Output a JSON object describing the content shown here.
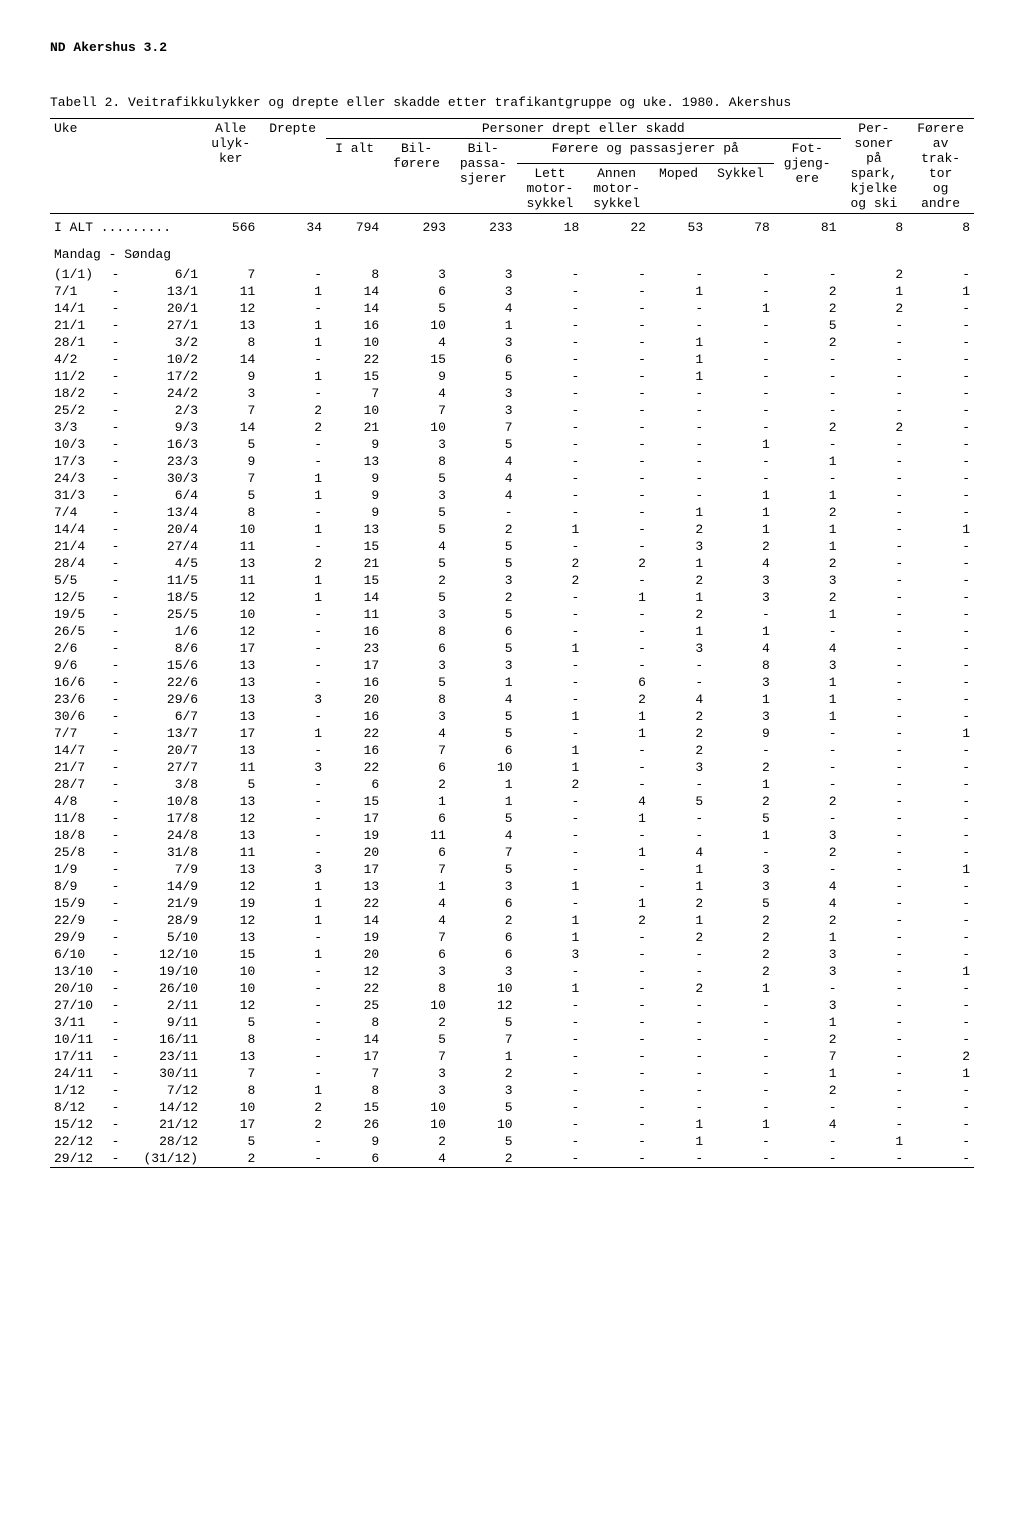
{
  "header_code": "ND  Akershus  3.2",
  "table_title": "Tabell 2.  Veitrafikkulykker og drepte eller skadde etter trafikantgruppe og uke.  1980.  Akershus",
  "headers": {
    "uke": "Uke",
    "alle_ulykker": "Alle\nulyk-\nker",
    "drepte": "Drepte",
    "personer_drept": "Personer drept eller skadd",
    "forere_pass": "Førere og passasjerer på",
    "i_alt": "I alt",
    "bilforere": "Bil-\nførere",
    "bilpassasjerer": "Bil-\npassa-\nsjerer",
    "lett_motorsykkel": "Lett\nmotor-\nsykkel",
    "annen_motorsykkel": "Annen\nmotor-\nsykkel",
    "moped": "Moped",
    "sykkel": "Sykkel",
    "fotgjengere": "Fot-\ngjeng-\nere",
    "personer_pa": "Per-\nsoner\npå\nspark,\nkjelke\nog ski",
    "forere_av": "Førere\nav\ntrak-\ntor\nog\nandre"
  },
  "total_label": "I ALT .........",
  "total_row": [
    "566",
    "34",
    "794",
    "293",
    "233",
    "18",
    "22",
    "53",
    "78",
    "81",
    "8",
    "8"
  ],
  "section_label": "Mandag - Søndag",
  "rows": [
    {
      "d": [
        "(1/1)",
        "-",
        "6/1"
      ],
      "v": [
        "7",
        "-",
        "8",
        "3",
        "3",
        "-",
        "-",
        "-",
        "-",
        "-",
        "2",
        "-"
      ]
    },
    {
      "d": [
        "7/1",
        "-",
        "13/1"
      ],
      "v": [
        "11",
        "1",
        "14",
        "6",
        "3",
        "-",
        "-",
        "1",
        "-",
        "2",
        "1",
        "1"
      ]
    },
    {
      "d": [
        "14/1",
        "-",
        "20/1"
      ],
      "v": [
        "12",
        "-",
        "14",
        "5",
        "4",
        "-",
        "-",
        "-",
        "1",
        "2",
        "2",
        "-"
      ]
    },
    {
      "d": [
        "21/1",
        "-",
        "27/1"
      ],
      "v": [
        "13",
        "1",
        "16",
        "10",
        "1",
        "-",
        "-",
        "-",
        "-",
        "5",
        "-",
        "-"
      ]
    },
    {
      "d": [
        "28/1",
        "-",
        "3/2"
      ],
      "v": [
        "8",
        "1",
        "10",
        "4",
        "3",
        "-",
        "-",
        "1",
        "-",
        "2",
        "-",
        "-"
      ]
    },
    {
      "d": [
        "4/2",
        "-",
        "10/2"
      ],
      "v": [
        "14",
        "-",
        "22",
        "15",
        "6",
        "-",
        "-",
        "1",
        "-",
        "-",
        "-",
        "-"
      ]
    },
    {
      "d": [
        "11/2",
        "-",
        "17/2"
      ],
      "v": [
        "9",
        "1",
        "15",
        "9",
        "5",
        "-",
        "-",
        "1",
        "-",
        "-",
        "-",
        "-"
      ]
    },
    {
      "d": [
        "18/2",
        "-",
        "24/2"
      ],
      "v": [
        "3",
        "-",
        "7",
        "4",
        "3",
        "-",
        "-",
        "-",
        "-",
        "-",
        "-",
        "-"
      ]
    },
    {
      "d": [
        "25/2",
        "-",
        "2/3"
      ],
      "v": [
        "7",
        "2",
        "10",
        "7",
        "3",
        "-",
        "-",
        "-",
        "-",
        "-",
        "-",
        "-"
      ]
    },
    {
      "d": [
        "3/3",
        "-",
        "9/3"
      ],
      "v": [
        "14",
        "2",
        "21",
        "10",
        "7",
        "-",
        "-",
        "-",
        "-",
        "2",
        "2",
        "-"
      ]
    },
    {
      "d": [
        "10/3",
        "-",
        "16/3"
      ],
      "v": [
        "5",
        "-",
        "9",
        "3",
        "5",
        "-",
        "-",
        "-",
        "1",
        "-",
        "-",
        "-"
      ]
    },
    {
      "d": [
        "17/3",
        "-",
        "23/3"
      ],
      "v": [
        "9",
        "-",
        "13",
        "8",
        "4",
        "-",
        "-",
        "-",
        "-",
        "1",
        "-",
        "-"
      ]
    },
    {
      "d": [
        "24/3",
        "-",
        "30/3"
      ],
      "v": [
        "7",
        "1",
        "9",
        "5",
        "4",
        "-",
        "-",
        "-",
        "-",
        "-",
        "-",
        "-"
      ]
    },
    {
      "d": [
        "31/3",
        "-",
        "6/4"
      ],
      "v": [
        "5",
        "1",
        "9",
        "3",
        "4",
        "-",
        "-",
        "-",
        "1",
        "1",
        "-",
        "-"
      ]
    },
    {
      "d": [
        "7/4",
        "-",
        "13/4"
      ],
      "v": [
        "8",
        "-",
        "9",
        "5",
        "-",
        "-",
        "-",
        "1",
        "1",
        "2",
        "-",
        "-"
      ]
    },
    {
      "d": [
        "14/4",
        "-",
        "20/4"
      ],
      "v": [
        "10",
        "1",
        "13",
        "5",
        "2",
        "1",
        "-",
        "2",
        "1",
        "1",
        "-",
        "1"
      ]
    },
    {
      "d": [
        "21/4",
        "-",
        "27/4"
      ],
      "v": [
        "11",
        "-",
        "15",
        "4",
        "5",
        "-",
        "-",
        "3",
        "2",
        "1",
        "-",
        "-"
      ]
    },
    {
      "d": [
        "28/4",
        "-",
        "4/5"
      ],
      "v": [
        "13",
        "2",
        "21",
        "5",
        "5",
        "2",
        "2",
        "1",
        "4",
        "2",
        "-",
        "-"
      ]
    },
    {
      "d": [
        "5/5",
        "-",
        "11/5"
      ],
      "v": [
        "11",
        "1",
        "15",
        "2",
        "3",
        "2",
        "-",
        "2",
        "3",
        "3",
        "-",
        "-"
      ]
    },
    {
      "d": [
        "12/5",
        "-",
        "18/5"
      ],
      "v": [
        "12",
        "1",
        "14",
        "5",
        "2",
        "-",
        "1",
        "1",
        "3",
        "2",
        "-",
        "-"
      ]
    },
    {
      "d": [
        "19/5",
        "-",
        "25/5"
      ],
      "v": [
        "10",
        "-",
        "11",
        "3",
        "5",
        "-",
        "-",
        "2",
        "-",
        "1",
        "-",
        "-"
      ]
    },
    {
      "d": [
        "26/5",
        "-",
        "1/6"
      ],
      "v": [
        "12",
        "-",
        "16",
        "8",
        "6",
        "-",
        "-",
        "1",
        "1",
        "-",
        "-",
        "-"
      ]
    },
    {
      "d": [
        "2/6",
        "-",
        "8/6"
      ],
      "v": [
        "17",
        "-",
        "23",
        "6",
        "5",
        "1",
        "-",
        "3",
        "4",
        "4",
        "-",
        "-"
      ]
    },
    {
      "d": [
        "9/6",
        "-",
        "15/6"
      ],
      "v": [
        "13",
        "-",
        "17",
        "3",
        "3",
        "-",
        "-",
        "-",
        "8",
        "3",
        "-",
        "-"
      ]
    },
    {
      "d": [
        "16/6",
        "-",
        "22/6"
      ],
      "v": [
        "13",
        "-",
        "16",
        "5",
        "1",
        "-",
        "6",
        "-",
        "3",
        "1",
        "-",
        "-"
      ]
    },
    {
      "d": [
        "23/6",
        "-",
        "29/6"
      ],
      "v": [
        "13",
        "3",
        "20",
        "8",
        "4",
        "-",
        "2",
        "4",
        "1",
        "1",
        "-",
        "-"
      ]
    },
    {
      "d": [
        "30/6",
        "-",
        "6/7"
      ],
      "v": [
        "13",
        "-",
        "16",
        "3",
        "5",
        "1",
        "1",
        "2",
        "3",
        "1",
        "-",
        "-"
      ]
    },
    {
      "d": [
        "7/7",
        "-",
        "13/7"
      ],
      "v": [
        "17",
        "1",
        "22",
        "4",
        "5",
        "-",
        "1",
        "2",
        "9",
        "-",
        "-",
        "1"
      ]
    },
    {
      "d": [
        "14/7",
        "-",
        "20/7"
      ],
      "v": [
        "13",
        "-",
        "16",
        "7",
        "6",
        "1",
        "-",
        "2",
        "-",
        "-",
        "-",
        "-"
      ]
    },
    {
      "d": [
        "21/7",
        "-",
        "27/7"
      ],
      "v": [
        "11",
        "3",
        "22",
        "6",
        "10",
        "1",
        "-",
        "3",
        "2",
        "-",
        "-",
        "-"
      ]
    },
    {
      "d": [
        "28/7",
        "-",
        "3/8"
      ],
      "v": [
        "5",
        "-",
        "6",
        "2",
        "1",
        "2",
        "-",
        "-",
        "1",
        "-",
        "-",
        "-"
      ]
    },
    {
      "d": [
        "4/8",
        "-",
        "10/8"
      ],
      "v": [
        "13",
        "-",
        "15",
        "1",
        "1",
        "-",
        "4",
        "5",
        "2",
        "2",
        "-",
        "-"
      ]
    },
    {
      "d": [
        "11/8",
        "-",
        "17/8"
      ],
      "v": [
        "12",
        "-",
        "17",
        "6",
        "5",
        "-",
        "1",
        "-",
        "5",
        "-",
        "-",
        "-"
      ]
    },
    {
      "d": [
        "18/8",
        "-",
        "24/8"
      ],
      "v": [
        "13",
        "-",
        "19",
        "11",
        "4",
        "-",
        "-",
        "-",
        "1",
        "3",
        "-",
        "-"
      ]
    },
    {
      "d": [
        "25/8",
        "-",
        "31/8"
      ],
      "v": [
        "11",
        "-",
        "20",
        "6",
        "7",
        "-",
        "1",
        "4",
        "-",
        "2",
        "-",
        "-"
      ]
    },
    {
      "d": [
        "1/9",
        "-",
        "7/9"
      ],
      "v": [
        "13",
        "3",
        "17",
        "7",
        "5",
        "-",
        "-",
        "1",
        "3",
        "-",
        "-",
        "1"
      ]
    },
    {
      "d": [
        "8/9",
        "-",
        "14/9"
      ],
      "v": [
        "12",
        "1",
        "13",
        "1",
        "3",
        "1",
        "-",
        "1",
        "3",
        "4",
        "-",
        "-"
      ]
    },
    {
      "d": [
        "15/9",
        "-",
        "21/9"
      ],
      "v": [
        "19",
        "1",
        "22",
        "4",
        "6",
        "-",
        "1",
        "2",
        "5",
        "4",
        "-",
        "-"
      ]
    },
    {
      "d": [
        "22/9",
        "-",
        "28/9"
      ],
      "v": [
        "12",
        "1",
        "14",
        "4",
        "2",
        "1",
        "2",
        "1",
        "2",
        "2",
        "-",
        "-"
      ]
    },
    {
      "d": [
        "29/9",
        "-",
        "5/10"
      ],
      "v": [
        "13",
        "-",
        "19",
        "7",
        "6",
        "1",
        "-",
        "2",
        "2",
        "1",
        "-",
        "-"
      ]
    },
    {
      "d": [
        "6/10",
        "-",
        "12/10"
      ],
      "v": [
        "15",
        "1",
        "20",
        "6",
        "6",
        "3",
        "-",
        "-",
        "2",
        "3",
        "-",
        "-"
      ]
    },
    {
      "d": [
        "13/10",
        "-",
        "19/10"
      ],
      "v": [
        "10",
        "-",
        "12",
        "3",
        "3",
        "-",
        "-",
        "-",
        "2",
        "3",
        "-",
        "1"
      ]
    },
    {
      "d": [
        "20/10",
        "-",
        "26/10"
      ],
      "v": [
        "10",
        "-",
        "22",
        "8",
        "10",
        "1",
        "-",
        "2",
        "1",
        "-",
        "-",
        "-"
      ]
    },
    {
      "d": [
        "27/10",
        "-",
        "2/11"
      ],
      "v": [
        "12",
        "-",
        "25",
        "10",
        "12",
        "-",
        "-",
        "-",
        "-",
        "3",
        "-",
        "-"
      ]
    },
    {
      "d": [
        "3/11",
        "-",
        "9/11"
      ],
      "v": [
        "5",
        "-",
        "8",
        "2",
        "5",
        "-",
        "-",
        "-",
        "-",
        "1",
        "-",
        "-"
      ]
    },
    {
      "d": [
        "10/11",
        "-",
        "16/11"
      ],
      "v": [
        "8",
        "-",
        "14",
        "5",
        "7",
        "-",
        "-",
        "-",
        "-",
        "2",
        "-",
        "-"
      ]
    },
    {
      "d": [
        "17/11",
        "-",
        "23/11"
      ],
      "v": [
        "13",
        "-",
        "17",
        "7",
        "1",
        "-",
        "-",
        "-",
        "-",
        "7",
        "-",
        "2"
      ]
    },
    {
      "d": [
        "24/11",
        "-",
        "30/11"
      ],
      "v": [
        "7",
        "-",
        "7",
        "3",
        "2",
        "-",
        "-",
        "-",
        "-",
        "1",
        "-",
        "1"
      ]
    },
    {
      "d": [
        "1/12",
        "-",
        "7/12"
      ],
      "v": [
        "8",
        "1",
        "8",
        "3",
        "3",
        "-",
        "-",
        "-",
        "-",
        "2",
        "-",
        "-"
      ]
    },
    {
      "d": [
        "8/12",
        "-",
        "14/12"
      ],
      "v": [
        "10",
        "2",
        "15",
        "10",
        "5",
        "-",
        "-",
        "-",
        "-",
        "-",
        "-",
        "-"
      ]
    },
    {
      "d": [
        "15/12",
        "-",
        "21/12"
      ],
      "v": [
        "17",
        "2",
        "26",
        "10",
        "10",
        "-",
        "-",
        "1",
        "1",
        "4",
        "-",
        "-"
      ]
    },
    {
      "d": [
        "22/12",
        "-",
        "28/12"
      ],
      "v": [
        "5",
        "-",
        "9",
        "2",
        "5",
        "-",
        "-",
        "1",
        "-",
        "-",
        "1",
        "-"
      ]
    },
    {
      "d": [
        "29/12",
        "-",
        "(31/12)"
      ],
      "v": [
        "2",
        "-",
        "6",
        "4",
        "2",
        "-",
        "-",
        "-",
        "-",
        "-",
        "-",
        "-"
      ]
    }
  ]
}
